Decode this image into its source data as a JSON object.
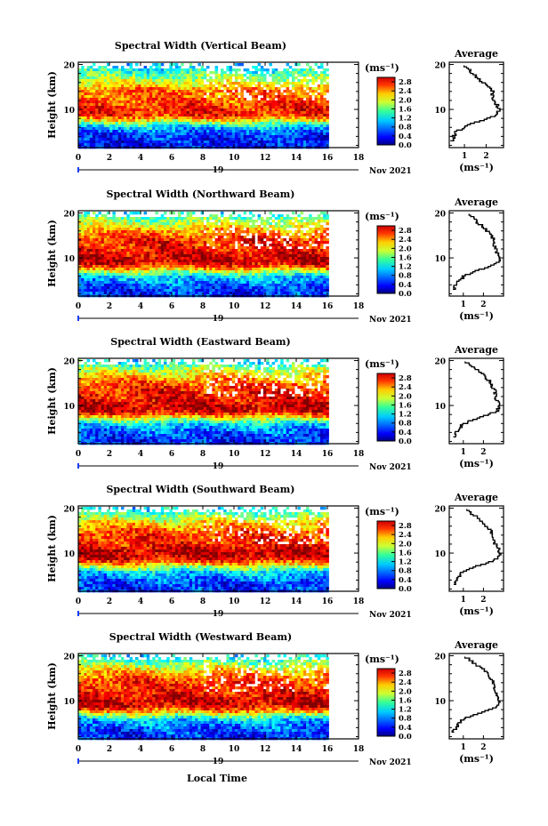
{
  "figure": {
    "x_axis_label": "Local Time",
    "date_day": "19",
    "date_month_year": "Nov 2021"
  },
  "chart_data": [
    {
      "type": "heatmap",
      "title": "Spectral Width (Vertical Beam)",
      "ylabel": "Height (km)",
      "xlabel": "Local Time",
      "x_ticks": [
        "0",
        "2",
        "4",
        "6",
        "8",
        "10",
        "12",
        "14",
        "16",
        "18"
      ],
      "y_ticks": [
        "10",
        "20"
      ],
      "xlim": [
        0,
        18
      ],
      "ylim": [
        1.5,
        20.5
      ],
      "colorbar": {
        "unit": "(ms⁻¹)",
        "ticks": [
          "0.0",
          "0.4",
          "0.8",
          "1.2",
          "1.6",
          "2.0",
          "2.4",
          "2.8"
        ],
        "range": [
          0,
          3.0
        ]
      },
      "data_extent_hours": [
        0,
        16
      ],
      "profile": {
        "title": "Average",
        "xlabel": "(ms⁻¹)",
        "x_ticks": [
          "1",
          "2"
        ],
        "xlim": [
          0.3,
          2.8
        ],
        "heights": [
          3,
          4,
          5,
          6,
          7,
          8,
          9,
          10,
          11,
          12,
          13,
          14,
          15,
          16,
          17,
          18,
          19,
          20
        ],
        "values": [
          0.4,
          0.5,
          0.6,
          0.9,
          1.3,
          2.0,
          2.5,
          2.6,
          2.5,
          2.4,
          2.3,
          2.3,
          2.2,
          1.9,
          1.6,
          1.4,
          1.2,
          1.0
        ]
      }
    },
    {
      "type": "heatmap",
      "title": "Spectral Width (Northward Beam)",
      "ylabel": "Height (km)",
      "xlabel": "Local Time",
      "x_ticks": [
        "0",
        "2",
        "4",
        "6",
        "8",
        "10",
        "12",
        "14",
        "16",
        "18"
      ],
      "y_ticks": [
        "10",
        "20"
      ],
      "xlim": [
        0,
        18
      ],
      "ylim": [
        1.5,
        20.5
      ],
      "colorbar": {
        "unit": "(ms⁻¹)",
        "ticks": [
          "0.0",
          "0.4",
          "0.8",
          "1.2",
          "1.6",
          "2.0",
          "2.4",
          "2.8"
        ],
        "range": [
          0,
          3.0
        ]
      },
      "data_extent_hours": [
        0,
        16
      ],
      "profile": {
        "title": "Average",
        "xlabel": "(ms⁻¹)",
        "x_ticks": [
          "1",
          "2"
        ],
        "xlim": [
          0.3,
          3.0
        ],
        "heights": [
          3,
          4,
          5,
          6,
          7,
          8,
          9,
          10,
          11,
          12,
          13,
          14,
          15,
          16,
          17,
          18,
          19,
          20
        ],
        "values": [
          0.5,
          0.6,
          0.8,
          1.0,
          1.5,
          2.2,
          2.7,
          2.8,
          2.7,
          2.6,
          2.5,
          2.6,
          2.4,
          2.2,
          2.0,
          1.7,
          1.5,
          1.2
        ]
      }
    },
    {
      "type": "heatmap",
      "title": "Spectral Width (Eastward Beam)",
      "ylabel": "Height (km)",
      "xlabel": "Local Time",
      "x_ticks": [
        "0",
        "2",
        "4",
        "6",
        "8",
        "10",
        "12",
        "14",
        "16",
        "18"
      ],
      "y_ticks": [
        "10",
        "20"
      ],
      "xlim": [
        0,
        18
      ],
      "ylim": [
        1.5,
        20.5
      ],
      "colorbar": {
        "unit": "(ms⁻¹)",
        "ticks": [
          "0.0",
          "0.4",
          "0.8",
          "1.2",
          "1.6",
          "2.0",
          "2.4",
          "2.8"
        ],
        "range": [
          0,
          3.0
        ]
      },
      "data_extent_hours": [
        0,
        16
      ],
      "profile": {
        "title": "Average",
        "xlabel": "(ms⁻¹)",
        "x_ticks": [
          "1",
          "2"
        ],
        "xlim": [
          0.3,
          3.0
        ],
        "heights": [
          3,
          4,
          5,
          6,
          7,
          8,
          9,
          10,
          11,
          12,
          13,
          14,
          15,
          16,
          17,
          18,
          19,
          20
        ],
        "values": [
          0.5,
          0.6,
          0.8,
          1.0,
          1.5,
          2.2,
          2.7,
          2.8,
          2.7,
          2.6,
          2.6,
          2.5,
          2.4,
          2.2,
          2.0,
          1.7,
          1.4,
          1.1
        ]
      }
    },
    {
      "type": "heatmap",
      "title": "Spectral Width (Southward Beam)",
      "ylabel": "Height (km)",
      "xlabel": "Local Time",
      "x_ticks": [
        "0",
        "2",
        "4",
        "6",
        "8",
        "10",
        "12",
        "14",
        "16",
        "18"
      ],
      "y_ticks": [
        "10",
        "20"
      ],
      "xlim": [
        0,
        18
      ],
      "ylim": [
        1.5,
        20.5
      ],
      "colorbar": {
        "unit": "(ms⁻¹)",
        "ticks": [
          "0.0",
          "0.4",
          "0.8",
          "1.2",
          "1.6",
          "2.0",
          "2.4",
          "2.8"
        ],
        "range": [
          0,
          3.0
        ]
      },
      "data_extent_hours": [
        0,
        16
      ],
      "profile": {
        "title": "Average",
        "xlabel": "(ms⁻¹)",
        "x_ticks": [
          "1",
          "2"
        ],
        "xlim": [
          0.3,
          3.0
        ],
        "heights": [
          3,
          4,
          5,
          6,
          7,
          8,
          9,
          10,
          11,
          12,
          13,
          14,
          15,
          16,
          17,
          18,
          19,
          20
        ],
        "values": [
          0.5,
          0.6,
          0.8,
          1.0,
          1.5,
          2.2,
          2.7,
          2.8,
          2.8,
          2.6,
          2.5,
          2.5,
          2.4,
          2.2,
          2.0,
          1.7,
          1.4,
          1.1
        ]
      }
    },
    {
      "type": "heatmap",
      "title": "Spectral Width (Westward Beam)",
      "ylabel": "Height (km)",
      "xlabel": "Local Time",
      "x_ticks": [
        "0",
        "2",
        "4",
        "6",
        "8",
        "10",
        "12",
        "14",
        "16",
        "18"
      ],
      "y_ticks": [
        "10",
        "20"
      ],
      "xlim": [
        0,
        18
      ],
      "ylim": [
        1.5,
        20.5
      ],
      "colorbar": {
        "unit": "(ms⁻¹)",
        "ticks": [
          "0.0",
          "0.4",
          "0.8",
          "1.2",
          "1.6",
          "2.0",
          "2.4",
          "2.8"
        ],
        "range": [
          0,
          3.0
        ]
      },
      "data_extent_hours": [
        0,
        16
      ],
      "profile": {
        "title": "Average",
        "xlabel": "(ms⁻¹)",
        "x_ticks": [
          "1",
          "2"
        ],
        "xlim": [
          0.3,
          3.0
        ],
        "heights": [
          3,
          4,
          5,
          6,
          7,
          8,
          9,
          10,
          11,
          12,
          13,
          14,
          15,
          16,
          17,
          18,
          19,
          20
        ],
        "values": [
          0.5,
          0.6,
          0.8,
          1.0,
          1.5,
          2.2,
          2.7,
          2.8,
          2.7,
          2.6,
          2.5,
          2.5,
          2.4,
          2.2,
          2.0,
          1.7,
          1.4,
          1.1
        ]
      }
    }
  ]
}
